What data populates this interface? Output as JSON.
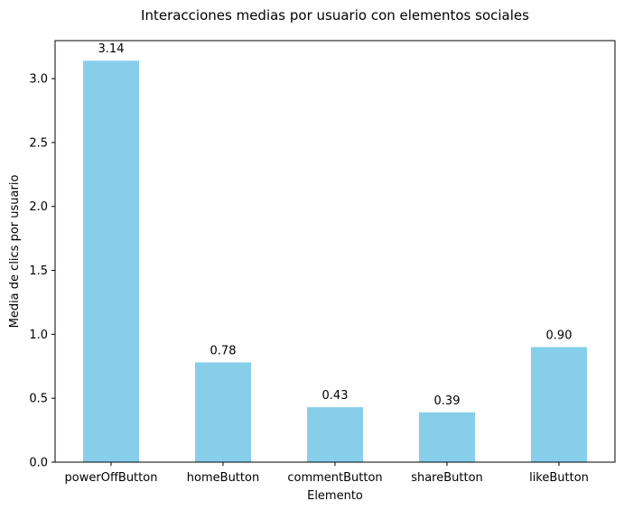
{
  "chart_data": {
    "type": "bar",
    "title": "Interacciones medias por usuario con elementos sociales",
    "xlabel": "Elemento",
    "ylabel": "Media de clics por usuario",
    "categories": [
      "powerOffButton",
      "homeButton",
      "commentButton",
      "shareButton",
      "likeButton"
    ],
    "values": [
      3.14,
      0.78,
      0.43,
      0.39,
      0.9
    ],
    "value_labels": [
      "3.14",
      "0.78",
      "0.43",
      "0.39",
      "0.90"
    ],
    "yticks": [
      0.0,
      0.5,
      1.0,
      1.5,
      2.0,
      2.5,
      3.0
    ],
    "ytick_labels": [
      "0.0",
      "0.5",
      "1.0",
      "1.5",
      "2.0",
      "2.5",
      "3.0"
    ],
    "ylim": [
      0,
      3.297
    ],
    "bar_color": "#87CEEB",
    "grid": false,
    "legend": "none"
  }
}
